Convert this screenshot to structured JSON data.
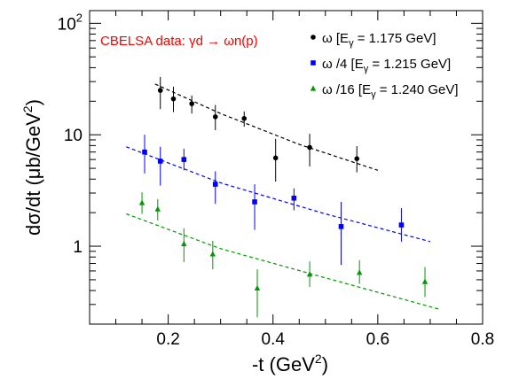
{
  "chart_data": {
    "type": "scatter",
    "title": "",
    "xlabel_base": "-t (GeV",
    "xlabel_sup": "2",
    "xlabel_end": ")",
    "ylabel_base": "dσ/dt (μb/GeV",
    "ylabel_sup": "2",
    "ylabel_end": ")",
    "xlim": [
      0.05,
      0.8
    ],
    "ylim": [
      0.2,
      130
    ],
    "yscale": "log",
    "xticks": [
      {
        "value": 0.2,
        "label": "0.2"
      },
      {
        "value": 0.4,
        "label": "0.4"
      },
      {
        "value": 0.6,
        "label": "0.6"
      },
      {
        "value": 0.8,
        "label": "0.8"
      }
    ],
    "yticks": [
      {
        "value": 1,
        "label": "1",
        "sup": ""
      },
      {
        "value": 10,
        "label": "10",
        "sup": ""
      },
      {
        "value": 100,
        "label": "10",
        "sup": "2"
      }
    ],
    "annotation": {
      "text": "CBELSA data: γd → ωn(p)",
      "color": "#ff0000"
    },
    "legend_placement": "top-right",
    "grid": false,
    "series": [
      {
        "name": "ω [E",
        "name_sub": "γ",
        "name_rest": " = 1.175 GeV]",
        "color": "#000000",
        "marker": "circle",
        "points": [
          {
            "x": 0.185,
            "y": 25,
            "ylo": 17,
            "yhi": 33
          },
          {
            "x": 0.21,
            "y": 21,
            "ylo": 16,
            "yhi": 27
          },
          {
            "x": 0.245,
            "y": 19,
            "ylo": 15.5,
            "yhi": 22.5
          },
          {
            "x": 0.29,
            "y": 14.5,
            "ylo": 11,
            "yhi": 18.5
          },
          {
            "x": 0.345,
            "y": 14,
            "ylo": 11.8,
            "yhi": 16.2
          },
          {
            "x": 0.405,
            "y": 6.2,
            "ylo": 3.8,
            "yhi": 9.2
          },
          {
            "x": 0.47,
            "y": 7.7,
            "ylo": 5.2,
            "yhi": 10.2
          },
          {
            "x": 0.56,
            "y": 6.1,
            "ylo": 4.6,
            "yhi": 7.9
          }
        ],
        "fit": [
          {
            "x": 0.175,
            "y": 28.5
          },
          {
            "x": 0.3,
            "y": 15.5
          },
          {
            "x": 0.45,
            "y": 8.2
          },
          {
            "x": 0.6,
            "y": 4.8
          }
        ]
      },
      {
        "name": "ω /4 [E",
        "name_sub": "γ",
        "name_rest": " = 1.215 GeV]",
        "color": "#0000ff",
        "marker": "square",
        "points": [
          {
            "x": 0.155,
            "y": 7.0,
            "ylo": 4.5,
            "yhi": 10
          },
          {
            "x": 0.185,
            "y": 5.8,
            "ylo": 3.5,
            "yhi": 7.8
          },
          {
            "x": 0.23,
            "y": 6.0,
            "ylo": 4.8,
            "yhi": 7.5
          },
          {
            "x": 0.29,
            "y": 3.6,
            "ylo": 2.4,
            "yhi": 4.7
          },
          {
            "x": 0.365,
            "y": 2.5,
            "ylo": 1.4,
            "yhi": 3.6
          },
          {
            "x": 0.44,
            "y": 2.7,
            "ylo": 2.1,
            "yhi": 3.3
          },
          {
            "x": 0.53,
            "y": 1.5,
            "ylo": 0.68,
            "yhi": 2.5
          },
          {
            "x": 0.645,
            "y": 1.55,
            "ylo": 1.1,
            "yhi": 2.2
          }
        ],
        "fit": [
          {
            "x": 0.12,
            "y": 7.8
          },
          {
            "x": 0.3,
            "y": 3.7
          },
          {
            "x": 0.5,
            "y": 1.95
          },
          {
            "x": 0.7,
            "y": 1.1
          }
        ]
      },
      {
        "name": "ω /16 [E",
        "name_sub": "γ",
        "name_rest": " = 1.240 GeV]",
        "color": "#009900",
        "marker": "triangle",
        "points": [
          {
            "x": 0.15,
            "y": 2.45,
            "ylo": 1.95,
            "yhi": 3.05
          },
          {
            "x": 0.18,
            "y": 2.15,
            "ylo": 1.7,
            "yhi": 2.65
          },
          {
            "x": 0.23,
            "y": 1.05,
            "ylo": 0.72,
            "yhi": 1.45
          },
          {
            "x": 0.285,
            "y": 0.85,
            "ylo": 0.62,
            "yhi": 1.12
          },
          {
            "x": 0.37,
            "y": 0.42,
            "ylo": 0.23,
            "yhi": 0.62
          },
          {
            "x": 0.47,
            "y": 0.56,
            "ylo": 0.43,
            "yhi": 0.73
          },
          {
            "x": 0.565,
            "y": 0.58,
            "ylo": 0.46,
            "yhi": 0.75
          },
          {
            "x": 0.69,
            "y": 0.48,
            "ylo": 0.35,
            "yhi": 0.65
          }
        ],
        "fit": [
          {
            "x": 0.12,
            "y": 1.95
          },
          {
            "x": 0.3,
            "y": 0.95
          },
          {
            "x": 0.5,
            "y": 0.52
          },
          {
            "x": 0.72,
            "y": 0.27
          }
        ]
      }
    ]
  }
}
